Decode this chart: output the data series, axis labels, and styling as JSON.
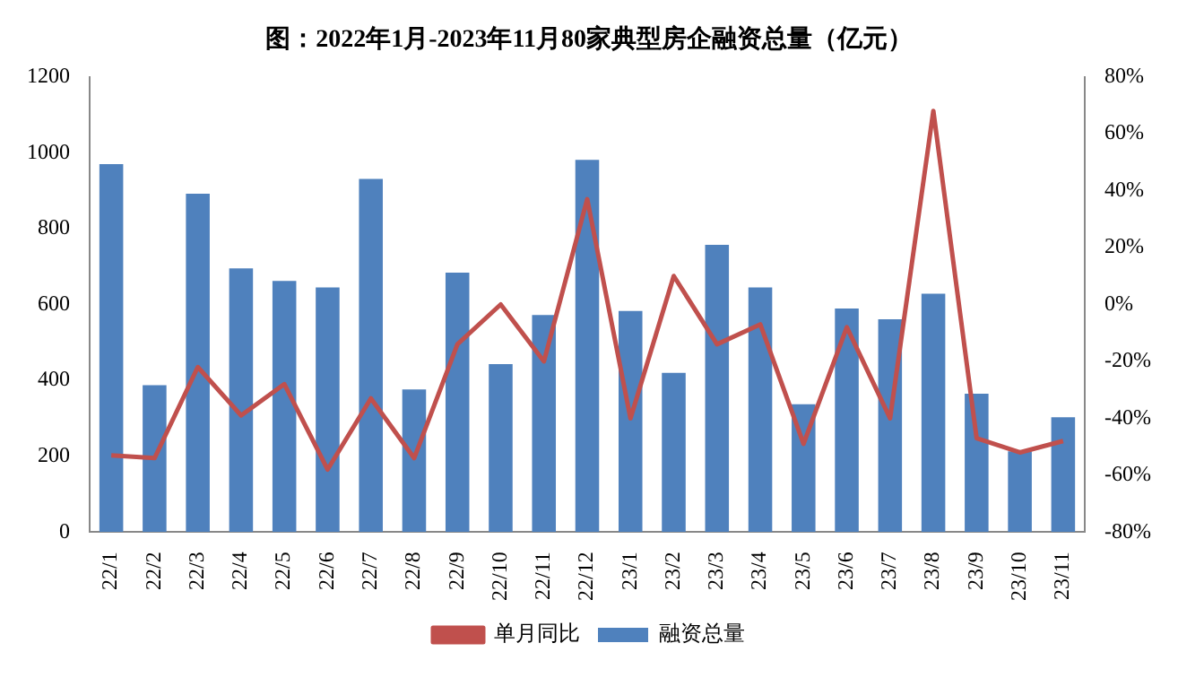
{
  "chart_data": {
    "type": "bar",
    "title": "图：2022年1月-2023年11月80家典型房企融资总量（亿元）",
    "categories": [
      "22/1",
      "22/2",
      "22/3",
      "22/4",
      "22/5",
      "22/6",
      "22/7",
      "22/8",
      "22/9",
      "22/10",
      "22/11",
      "22/12",
      "23/1",
      "23/2",
      "23/3",
      "23/4",
      "23/5",
      "23/6",
      "23/7",
      "23/8",
      "23/9",
      "23/10",
      "23/11"
    ],
    "series": [
      {
        "name": "融资总量",
        "color": "#4f81bd",
        "values": [
          970,
          387,
          892,
          695,
          662,
          645,
          931,
          376,
          684,
          443,
          572,
          981,
          583,
          420,
          757,
          645,
          337,
          589,
          561,
          628,
          365,
          213,
          303
        ]
      },
      {
        "name": "单月同比",
        "type": "line",
        "axis": "y2",
        "color": "#c0504d",
        "values": [
          -53,
          -54,
          -22,
          -39,
          -28,
          -58,
          -33,
          -54,
          -14,
          0,
          -20,
          37,
          -40,
          10,
          -14,
          -7,
          -49,
          -8,
          -40,
          68,
          -47,
          -52,
          -48
        ]
      }
    ],
    "ylim": [
      0,
      1200
    ],
    "yticks": [
      0,
      200,
      400,
      600,
      800,
      1000,
      1200
    ],
    "y2lim": [
      -80,
      80
    ],
    "y2ticks": [
      {
        "value": -80,
        "label": "-80%"
      },
      {
        "value": -60,
        "label": "-60%"
      },
      {
        "value": -40,
        "label": "-40%"
      },
      {
        "value": -20,
        "label": "-20%"
      },
      {
        "value": 0,
        "label": "0%"
      },
      {
        "value": 20,
        "label": "20%"
      },
      {
        "value": 40,
        "label": "40%"
      },
      {
        "value": 60,
        "label": "60%"
      },
      {
        "value": 80,
        "label": "80%"
      }
    ],
    "grid": false,
    "legend": "bottom"
  }
}
